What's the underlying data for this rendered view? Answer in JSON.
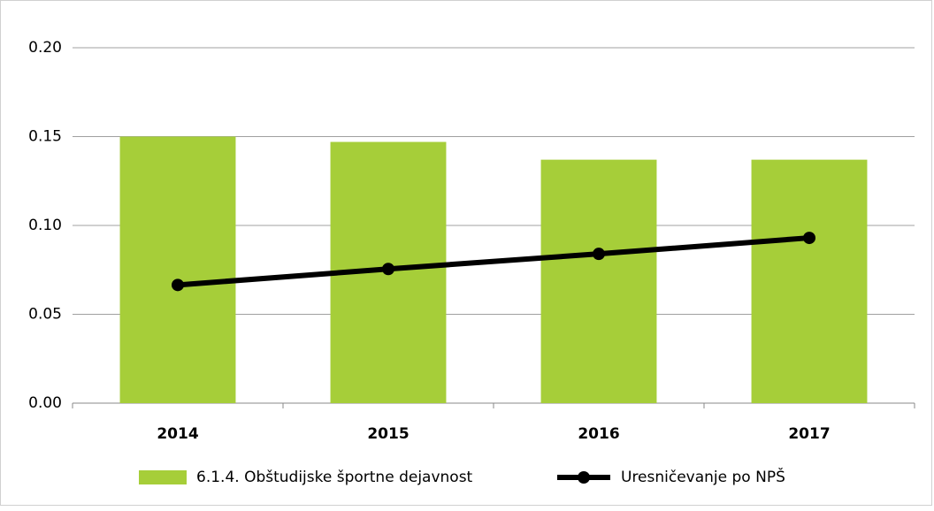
{
  "chart_data": {
    "type": "bar",
    "categories": [
      "2014",
      "2015",
      "2016",
      "2017"
    ],
    "series": [
      {
        "name": "6.1.4. Obštudijske športne dejavnost",
        "type": "bar",
        "color": "#a6ce39",
        "values": [
          0.15,
          0.147,
          0.137,
          0.137
        ]
      },
      {
        "name": "Uresničevanje po NPŠ",
        "type": "line",
        "color": "#000000",
        "values": [
          0.0665,
          0.0755,
          0.084,
          0.093
        ]
      }
    ],
    "ylim": [
      0,
      0.2
    ],
    "yticks": [
      {
        "value": 0,
        "label": "0.00"
      },
      {
        "value": 0.05,
        "label": "0.05"
      },
      {
        "value": 0.1,
        "label": "0.10"
      },
      {
        "value": 0.15,
        "label": "0.15"
      },
      {
        "value": 0.2,
        "label": "0.20"
      }
    ],
    "grid": true,
    "legend": "bottom"
  }
}
